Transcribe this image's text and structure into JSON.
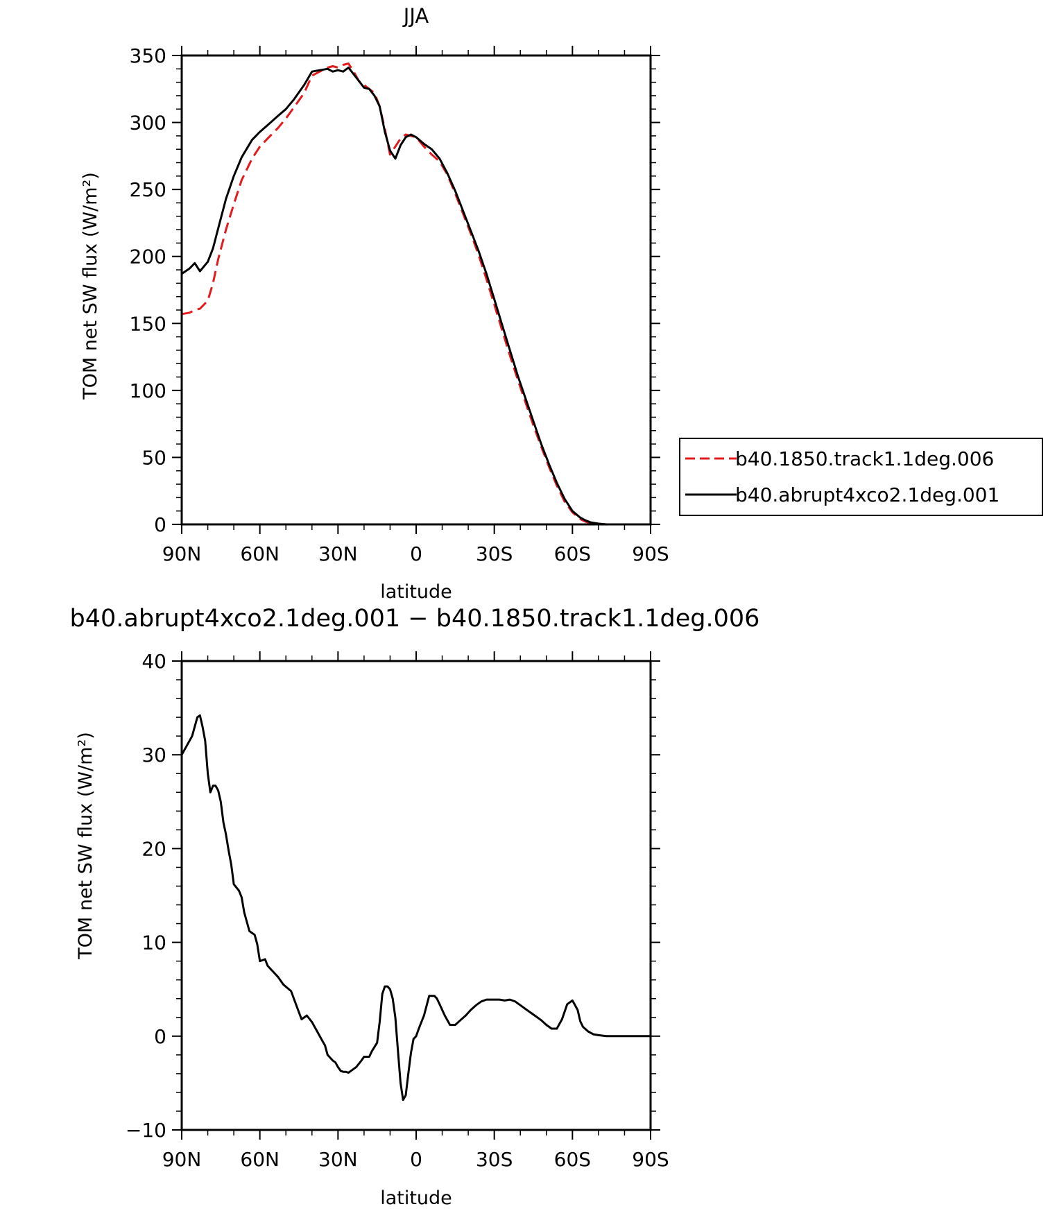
{
  "chart_data": [
    {
      "type": "line",
      "title": "JJA",
      "xlabel": "latitude",
      "ylabel": "TOM net SW flux (W/m²)",
      "xlim": [
        90,
        -90
      ],
      "ylim": [
        0,
        350
      ],
      "xticks": [
        90,
        60,
        30,
        0,
        -30,
        -60,
        -90
      ],
      "xtick_labels": [
        "90N",
        "60N",
        "30N",
        "0",
        "30S",
        "60S",
        "90S"
      ],
      "yticks": [
        0,
        50,
        100,
        150,
        200,
        250,
        300,
        350
      ],
      "ytick_labels": [
        "0",
        "50",
        "100",
        "150",
        "200",
        "250",
        "300",
        "350"
      ],
      "legend_position": "right",
      "series": [
        {
          "name": "b40.1850.track1.1deg.006",
          "color": "#e41a1c",
          "dash": "dashed",
          "x": [
            90,
            87,
            85,
            83,
            80,
            78,
            76,
            73,
            70,
            67,
            63,
            60,
            57,
            53,
            50,
            47,
            43,
            40,
            37,
            34,
            32,
            30,
            28,
            26,
            24,
            22,
            20,
            18,
            16,
            14,
            12,
            10,
            8,
            6,
            4,
            2,
            0,
            -3,
            -6,
            -9,
            -12,
            -15,
            -18,
            -21,
            -24,
            -27,
            -30,
            -33,
            -36,
            -39,
            -42,
            -45,
            -48,
            -51,
            -54,
            -57,
            -60,
            -63,
            -65,
            -67,
            -70,
            -73,
            -76,
            -80,
            -85,
            -90
          ],
          "y": [
            157,
            158,
            160,
            161,
            167,
            180,
            198,
            220,
            239,
            257,
            273,
            282,
            288,
            296,
            303,
            311,
            322,
            335,
            338,
            341,
            342,
            341,
            343,
            344,
            338,
            331,
            328,
            325,
            322,
            312,
            295,
            276,
            282,
            288,
            291,
            290,
            289,
            282,
            276,
            271,
            261,
            247,
            232,
            217,
            201,
            183,
            164,
            145,
            126,
            108,
            91,
            74,
            58,
            43,
            29,
            17,
            9,
            4,
            2,
            1,
            0.5,
            0,
            0,
            0,
            0,
            0
          ]
        },
        {
          "name": "b40.abrupt4xco2.1deg.001",
          "color": "#000000",
          "dash": "solid",
          "x": [
            90,
            87,
            85,
            83,
            80,
            78,
            76,
            73,
            70,
            67,
            63,
            60,
            57,
            53,
            50,
            47,
            43,
            40,
            37,
            34,
            32,
            30,
            28,
            26,
            24,
            22,
            20,
            18,
            16,
            14,
            12,
            10,
            8,
            6,
            4,
            2,
            0,
            -3,
            -6,
            -9,
            -12,
            -15,
            -18,
            -21,
            -24,
            -27,
            -30,
            -33,
            -36,
            -39,
            -42,
            -45,
            -48,
            -51,
            -54,
            -57,
            -60,
            -63,
            -65,
            -67,
            -70,
            -73,
            -76,
            -80,
            -85,
            -90
          ],
          "y": [
            187,
            191,
            195,
            189,
            196,
            206,
            221,
            243,
            260,
            274,
            287,
            293,
            298,
            305,
            310,
            317,
            328,
            338,
            339,
            340,
            338,
            339,
            338,
            341,
            336,
            331,
            326,
            325,
            320,
            312,
            293,
            279,
            273,
            283,
            289,
            291,
            289,
            284,
            280,
            273,
            262,
            249,
            234,
            219,
            204,
            187,
            168,
            149,
            130,
            111,
            94,
            77,
            60,
            45,
            31,
            19,
            10,
            5,
            3,
            1.5,
            0.5,
            0,
            0,
            0,
            0,
            0
          ]
        }
      ]
    },
    {
      "type": "line",
      "title": "b40.abrupt4xco2.1deg.001 − b40.1850.track1.1deg.006",
      "xlabel": "latitude",
      "ylabel": "TOM net SW flux (W/m²)",
      "xlim": [
        90,
        -90
      ],
      "ylim": [
        -10,
        40
      ],
      "xticks": [
        90,
        60,
        30,
        0,
        -30,
        -60,
        -90
      ],
      "xtick_labels": [
        "90N",
        "60N",
        "30N",
        "0",
        "30S",
        "60S",
        "90S"
      ],
      "yticks": [
        -10,
        0,
        10,
        20,
        30,
        40
      ],
      "ytick_labels": [
        "−10",
        "0",
        "10",
        "20",
        "30",
        "40"
      ],
      "series": [
        {
          "color": "#000000",
          "dash": "solid",
          "x": [
            90,
            88,
            86,
            84,
            83,
            82,
            81,
            80,
            79,
            78,
            77,
            76,
            75,
            74,
            73,
            72,
            71,
            70,
            68,
            67,
            66,
            64,
            62,
            61,
            60,
            58,
            57,
            56,
            53,
            51,
            48,
            46,
            44,
            42,
            40,
            38,
            36,
            35,
            34,
            32,
            31,
            30,
            29,
            28,
            27,
            26,
            25,
            23,
            21,
            20,
            18,
            17,
            15,
            14,
            13,
            12,
            11,
            10,
            9,
            8,
            7,
            6,
            5,
            4,
            3,
            2,
            1,
            0,
            -1,
            -3,
            -5,
            -7,
            -8,
            -9,
            -11,
            -13,
            -15,
            -17,
            -19,
            -21,
            -23,
            -25,
            -27,
            -30,
            -32,
            -34,
            -36,
            -38,
            -40,
            -42,
            -44,
            -46,
            -48,
            -50,
            -52,
            -54,
            -56,
            -58,
            -60,
            -62,
            -63,
            -64,
            -66,
            -68,
            -70,
            -73,
            -80,
            -90
          ],
          "y": [
            30,
            31,
            32,
            34,
            34.2,
            33,
            31.5,
            28,
            26,
            26.7,
            26.7,
            26.2,
            25,
            22.8,
            21.5,
            19.8,
            18.3,
            16.2,
            15.5,
            14.8,
            13.2,
            11.2,
            10.8,
            9.8,
            8,
            8.2,
            7.5,
            7.2,
            6.3,
            5.5,
            4.8,
            3.3,
            1.8,
            2.2,
            1.5,
            0.5,
            -0.5,
            -1,
            -2,
            -2.6,
            -2.8,
            -3.3,
            -3.7,
            -3.8,
            -3.8,
            -3.9,
            -3.7,
            -3.3,
            -2.6,
            -2.2,
            -2.2,
            -1.6,
            -0.7,
            1.5,
            4.5,
            5.3,
            5.3,
            5,
            4,
            2,
            -1.5,
            -5,
            -6.8,
            -6.3,
            -4,
            -1.8,
            -0.3,
            0,
            0.8,
            2.2,
            4.3,
            4.3,
            4,
            3.4,
            2.2,
            1.2,
            1.2,
            1.7,
            2.2,
            2.8,
            3.3,
            3.7,
            3.9,
            3.9,
            3.9,
            3.8,
            3.9,
            3.7,
            3.3,
            2.9,
            2.5,
            2.1,
            1.7,
            1.2,
            0.8,
            0.8,
            1.8,
            3.4,
            3.8,
            2.8,
            1.6,
            1,
            0.5,
            0.2,
            0.1,
            0,
            0,
            0
          ]
        }
      ]
    }
  ]
}
